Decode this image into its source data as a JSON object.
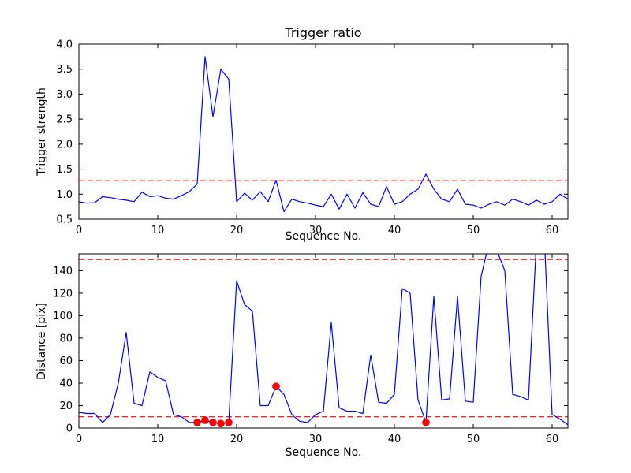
{
  "figure": {
    "background": "#ffffff",
    "line_color": "#0000ff",
    "threshold_color": "#ff0000",
    "marker_color": "#ff0000",
    "axes_color": "#000000"
  },
  "chart_data": [
    {
      "type": "line",
      "title": "Trigger ratio",
      "xlabel": "Sequence No.",
      "ylabel": "Trigger strength",
      "xlim": [
        0,
        62
      ],
      "ylim": [
        0.5,
        4.0
      ],
      "grid": false,
      "legend": "none",
      "xticks": {
        "values": [
          0,
          10,
          20,
          30,
          40,
          50,
          60
        ],
        "labels": [
          "0",
          "10",
          "20",
          "30",
          "40",
          "50",
          "60"
        ]
      },
      "yticks": {
        "values": [
          0.5,
          1.0,
          1.5,
          2.0,
          2.5,
          3.0,
          3.5,
          4.0
        ],
        "labels": [
          "0.5",
          "1.0",
          "1.5",
          "2.0",
          "2.5",
          "3.0",
          "3.5",
          "4.0"
        ]
      },
      "thresholds": [
        1.27
      ],
      "x": [
        0,
        1,
        2,
        3,
        4,
        5,
        6,
        7,
        8,
        9,
        10,
        11,
        12,
        13,
        14,
        15,
        16,
        17,
        18,
        19,
        20,
        21,
        22,
        23,
        24,
        25,
        26,
        27,
        28,
        29,
        30,
        31,
        32,
        33,
        34,
        35,
        36,
        37,
        38,
        39,
        40,
        41,
        42,
        43,
        44,
        45,
        46,
        47,
        48,
        49,
        50,
        51,
        52,
        53,
        54,
        55,
        56,
        57,
        58,
        59,
        60,
        61,
        62
      ],
      "y": [
        0.85,
        0.82,
        0.83,
        0.95,
        0.93,
        0.9,
        0.88,
        0.85,
        1.04,
        0.95,
        0.97,
        0.92,
        0.9,
        0.97,
        1.05,
        1.2,
        3.75,
        2.55,
        3.5,
        3.3,
        0.85,
        1.02,
        0.88,
        1.05,
        0.85,
        1.28,
        0.65,
        0.9,
        0.85,
        0.82,
        0.78,
        0.75,
        1.0,
        0.7,
        1.0,
        0.72,
        1.03,
        0.8,
        0.75,
        1.15,
        0.8,
        0.85,
        1.0,
        1.1,
        1.4,
        1.1,
        0.9,
        0.85,
        1.1,
        0.8,
        0.78,
        0.72,
        0.8,
        0.85,
        0.78,
        0.9,
        0.85,
        0.78,
        0.88,
        0.8,
        0.85,
        1.0,
        0.9
      ],
      "markers": []
    },
    {
      "type": "line",
      "title": "",
      "xlabel": "Sequence No.",
      "ylabel": "Distance [pix]",
      "xlim": [
        0,
        62
      ],
      "ylim": [
        0,
        155
      ],
      "grid": false,
      "legend": "none",
      "xticks": {
        "values": [
          0,
          10,
          20,
          30,
          40,
          50,
          60
        ],
        "labels": [
          "0",
          "10",
          "20",
          "30",
          "40",
          "50",
          "60"
        ]
      },
      "yticks": {
        "values": [
          0,
          20,
          40,
          60,
          80,
          100,
          120,
          140
        ],
        "labels": [
          "0",
          "20",
          "40",
          "60",
          "80",
          "100",
          "120",
          "140"
        ]
      },
      "thresholds": [
        150,
        10
      ],
      "x": [
        0,
        1,
        2,
        3,
        4,
        5,
        6,
        7,
        8,
        9,
        10,
        11,
        12,
        13,
        14,
        15,
        16,
        17,
        18,
        19,
        20,
        21,
        22,
        23,
        24,
        25,
        26,
        27,
        28,
        29,
        30,
        31,
        32,
        33,
        34,
        35,
        36,
        37,
        38,
        39,
        40,
        41,
        42,
        43,
        44,
        45,
        46,
        47,
        48,
        49,
        50,
        51,
        52,
        53,
        54,
        55,
        56,
        57,
        58,
        59,
        60,
        61,
        62
      ],
      "y": [
        14,
        13,
        13,
        5,
        12,
        40,
        85,
        22,
        20,
        50,
        45,
        42,
        12,
        10,
        5,
        5,
        7,
        5,
        4,
        5,
        131,
        110,
        104,
        20,
        20,
        37,
        30,
        12,
        6,
        5,
        12,
        15,
        94,
        18,
        15,
        15,
        13,
        65,
        23,
        22,
        30,
        124,
        120,
        25,
        5,
        117,
        25,
        26,
        117,
        24,
        23,
        135,
        165,
        158,
        140,
        30,
        28,
        25,
        165,
        172,
        12,
        8,
        3
      ],
      "markers": [
        [
          15,
          5
        ],
        [
          16,
          7
        ],
        [
          17,
          5
        ],
        [
          18,
          4
        ],
        [
          19,
          5
        ],
        [
          25,
          37
        ],
        [
          44,
          5
        ]
      ]
    }
  ]
}
